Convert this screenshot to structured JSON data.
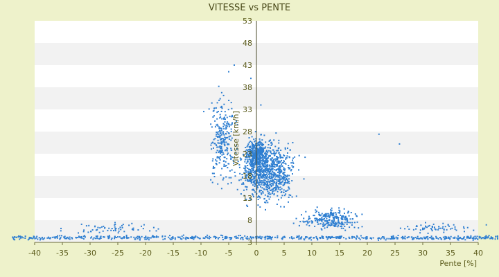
{
  "chart_data": {
    "type": "scatter",
    "title": "VITESSE vs PENTE",
    "xlabel": "Pente [%]",
    "ylabel": "Vitesse [km/h]",
    "xlim": [
      -40,
      40
    ],
    "ylim": [
      3,
      53
    ],
    "x_ticks": [
      "-40",
      "-35",
      "-30",
      "-25",
      "-20",
      "-15",
      "-10",
      "-5",
      "0",
      "5",
      "10",
      "15",
      "20",
      "25",
      "30",
      "35",
      "40"
    ],
    "y_ticks": [
      "53",
      "48",
      "43",
      "38",
      "33",
      "28",
      "23",
      "18",
      "13",
      "8",
      "3"
    ],
    "grid": "horizontal bands",
    "colors": {
      "points": "#2f7fd1",
      "band": "#f2f2f2",
      "plot": "#ffffff",
      "background": "#eef2cb"
    },
    "series": [
      {
        "clusters": [
          {
            "x_range": [
              -44,
              44
            ],
            "y_range": [
              3.3,
              4.8
            ],
            "count": 620
          },
          {
            "x_range": [
              -6,
              10
            ],
            "y_range": [
              8,
              30
            ],
            "count": 900
          },
          {
            "x_range": [
              -10,
              -2
            ],
            "y_range": [
              10,
              42
            ],
            "count": 260
          },
          {
            "x_range": [
              -3,
              3
            ],
            "y_range": [
              18,
              28
            ],
            "count": 320
          },
          {
            "x_range": [
              5,
              22
            ],
            "y_range": [
              4.5,
              12
            ],
            "count": 260
          },
          {
            "x_range": [
              -40,
              -10
            ],
            "y_range": [
              4.5,
              8
            ],
            "count": 60
          },
          {
            "x_range": [
              20,
              44
            ],
            "y_range": [
              4.5,
              8
            ],
            "count": 60
          }
        ],
        "highlight_points": [
          {
            "x": 22.1,
            "y": 27.4
          },
          {
            "x": 25.8,
            "y": 25.2
          },
          {
            "x": -4.0,
            "y": 43.0
          },
          {
            "x": -5.0,
            "y": 41.5
          },
          {
            "x": -1.0,
            "y": 40.0
          },
          {
            "x": 0.8,
            "y": 34.0
          }
        ]
      }
    ]
  }
}
